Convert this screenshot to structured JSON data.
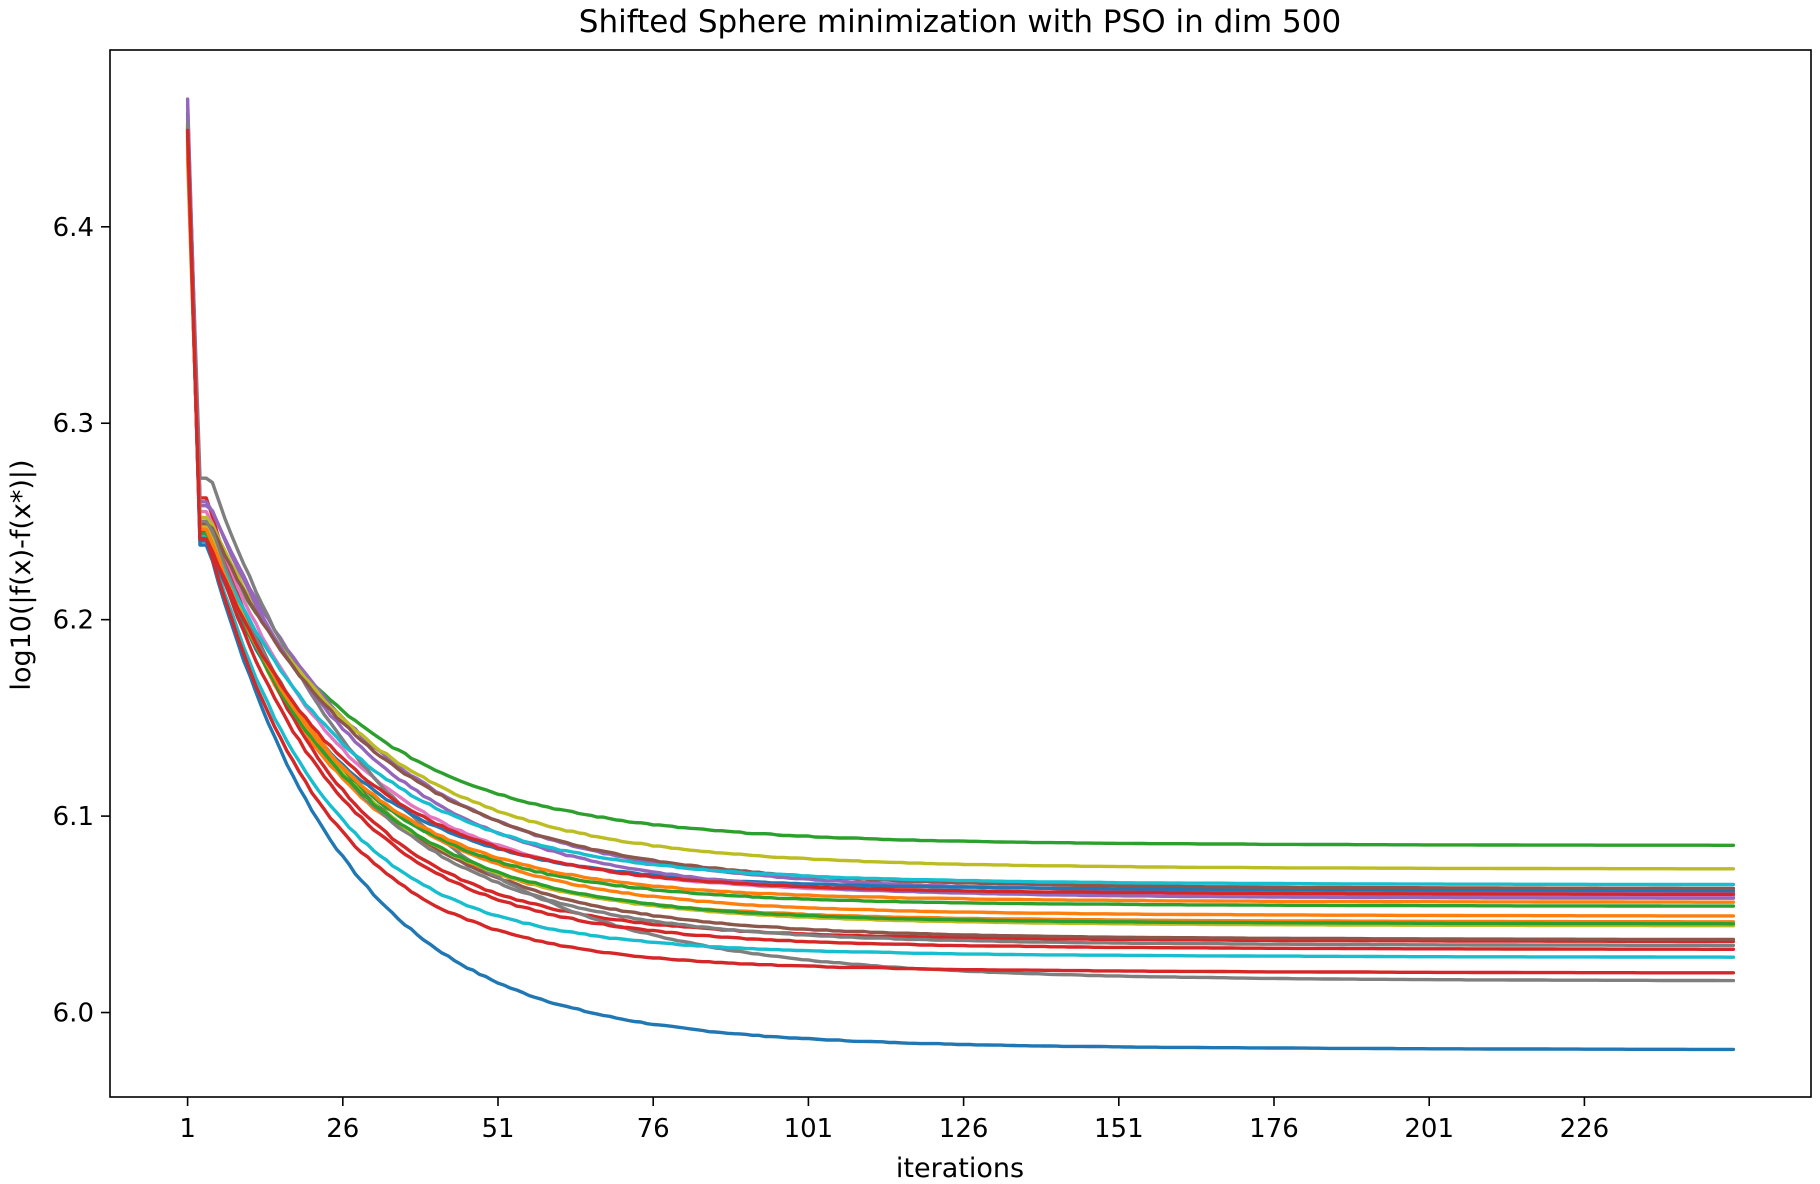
{
  "chart_data": {
    "type": "line",
    "title": "Shifted Sphere minimization with PSO in dim 500",
    "xlabel": "iterations",
    "ylabel": "log10(|f(x)-f(x*)|)",
    "xlim": [
      -11.5,
      262.5
    ],
    "ylim": [
      5.957,
      6.49
    ],
    "x_ticks": [
      1,
      26,
      51,
      76,
      101,
      126,
      151,
      176,
      201,
      226
    ],
    "y_ticks": [
      6.0,
      6.1,
      6.2,
      6.3,
      6.4
    ],
    "y_tick_labels": [
      "6.0",
      "6.1",
      "6.2",
      "6.3",
      "6.4"
    ],
    "x_range": [
      1,
      250
    ],
    "grid": false,
    "legend": "none",
    "series": [
      {
        "color": "#1f77b4",
        "start": 6.458,
        "after_drop": 6.238,
        "final": 5.981,
        "k": 0.085
      },
      {
        "color": "#ff7f0e",
        "start": 6.435,
        "after_drop": 6.248,
        "final": 6.046,
        "k": 0.09
      },
      {
        "color": "#2ca02c",
        "start": 6.45,
        "after_drop": 6.245,
        "final": 6.085,
        "k": 0.075
      },
      {
        "color": "#d62728",
        "start": 6.442,
        "after_drop": 6.262,
        "final": 6.036,
        "k": 0.095
      },
      {
        "color": "#9467bd",
        "start": 6.465,
        "after_drop": 6.258,
        "final": 6.061,
        "k": 0.07
      },
      {
        "color": "#8c564b",
        "start": 6.452,
        "after_drop": 6.25,
        "final": 6.037,
        "k": 0.08
      },
      {
        "color": "#e377c2",
        "start": 6.447,
        "after_drop": 6.255,
        "final": 6.059,
        "k": 0.085
      },
      {
        "color": "#7f7f7f",
        "start": 6.455,
        "after_drop": 6.272,
        "final": 6.016,
        "k": 0.065
      },
      {
        "color": "#bcbd22",
        "start": 6.44,
        "after_drop": 6.252,
        "final": 6.073,
        "k": 0.075
      },
      {
        "color": "#17becf",
        "start": 6.446,
        "after_drop": 6.244,
        "final": 6.028,
        "k": 0.1
      },
      {
        "color": "#1f77b4",
        "start": 6.45,
        "after_drop": 6.24,
        "final": 6.062,
        "k": 0.09
      },
      {
        "color": "#ff7f0e",
        "start": 6.444,
        "after_drop": 6.248,
        "final": 6.049,
        "k": 0.085
      },
      {
        "color": "#2ca02c",
        "start": 6.449,
        "after_drop": 6.246,
        "final": 6.054,
        "k": 0.09
      },
      {
        "color": "#d62728",
        "start": 6.448,
        "after_drop": 6.242,
        "final": 6.02,
        "k": 0.1
      },
      {
        "color": "#9467bd",
        "start": 6.462,
        "after_drop": 6.26,
        "final": 6.058,
        "k": 0.075
      },
      {
        "color": "#8c564b",
        "start": 6.451,
        "after_drop": 6.249,
        "final": 6.063,
        "k": 0.07
      },
      {
        "color": "#7f7f7f",
        "start": 6.453,
        "after_drop": 6.25,
        "final": 6.034,
        "k": 0.08
      },
      {
        "color": "#bcbd22",
        "start": 6.445,
        "after_drop": 6.247,
        "final": 6.044,
        "k": 0.085
      },
      {
        "color": "#17becf",
        "start": 6.447,
        "after_drop": 6.243,
        "final": 6.065,
        "k": 0.08
      },
      {
        "color": "#d62728",
        "start": 6.446,
        "after_drop": 6.245,
        "final": 6.032,
        "k": 0.09
      },
      {
        "color": "#2ca02c",
        "start": 6.448,
        "after_drop": 6.244,
        "final": 6.045,
        "k": 0.085
      },
      {
        "color": "#ff7f0e",
        "start": 6.443,
        "after_drop": 6.246,
        "final": 6.056,
        "k": 0.09
      },
      {
        "color": "#d62728",
        "start": 6.449,
        "after_drop": 6.241,
        "final": 6.06,
        "k": 0.085
      }
    ]
  }
}
